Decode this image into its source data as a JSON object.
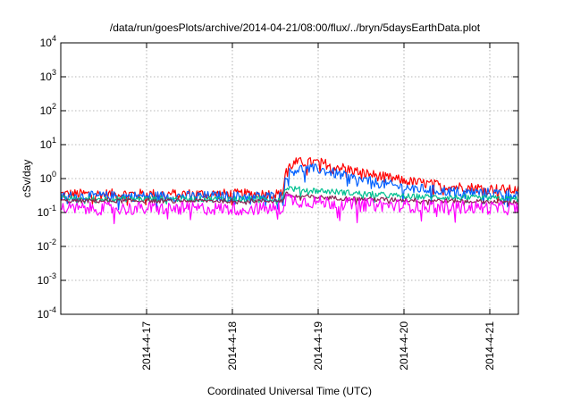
{
  "chart_data": {
    "type": "line",
    "title": "/data/run/goesPlots/archive/2014-04-21/08:00/flux/../bryn/5daysEarthData.plot",
    "xlabel": "Coordinated Universal Time (UTC)",
    "ylabel": "cSv/day",
    "yscale": "log",
    "ylim": [
      0.0001,
      10000
    ],
    "xlim": [
      "2014-04-16 00:00",
      "2014-04-21 08:00"
    ],
    "grid": true,
    "legend": "none",
    "x_ticks": [
      "2014-4-17",
      "2014-4-18",
      "2014-4-19",
      "2014-4-20",
      "2014-4-21"
    ],
    "y_ticks": [
      {
        "base": "10",
        "exp": "-4",
        "value": 0.0001
      },
      {
        "base": "10",
        "exp": "-3",
        "value": 0.001
      },
      {
        "base": "10",
        "exp": "-2",
        "value": 0.01
      },
      {
        "base": "10",
        "exp": "-1",
        "value": 0.1
      },
      {
        "base": "10",
        "exp": "0",
        "value": 1
      },
      {
        "base": "10",
        "exp": "1",
        "value": 10
      },
      {
        "base": "10",
        "exp": "2",
        "value": 100
      },
      {
        "base": "10",
        "exp": "3",
        "value": 1000
      },
      {
        "base": "10",
        "exp": "4",
        "value": 10000
      }
    ],
    "series": [
      {
        "color": "#ff0000",
        "noise": 0.35,
        "points": [
          [
            "2014-04-16 00:00",
            0.35
          ],
          [
            "2014-04-18 14:00",
            0.35
          ],
          [
            "2014-04-18 15:00",
            2.0
          ],
          [
            "2014-04-18 18:00",
            3.0
          ],
          [
            "2014-04-19 00:00",
            3.0
          ],
          [
            "2014-04-19 06:00",
            2.2
          ],
          [
            "2014-04-19 12:00",
            1.5
          ],
          [
            "2014-04-20 00:00",
            0.85
          ],
          [
            "2014-04-20 12:00",
            0.6
          ],
          [
            "2014-04-21 08:00",
            0.45
          ]
        ]
      },
      {
        "color": "#0060ff",
        "noise": 0.35,
        "points": [
          [
            "2014-04-16 00:00",
            0.3
          ],
          [
            "2014-04-18 14:00",
            0.3
          ],
          [
            "2014-04-18 15:00",
            1.3
          ],
          [
            "2014-04-18 18:00",
            1.9
          ],
          [
            "2014-04-19 00:00",
            1.9
          ],
          [
            "2014-04-19 06:00",
            1.3
          ],
          [
            "2014-04-19 12:00",
            0.9
          ],
          [
            "2014-04-20 00:00",
            0.55
          ],
          [
            "2014-04-20 12:00",
            0.42
          ],
          [
            "2014-04-21 08:00",
            0.35
          ]
        ]
      },
      {
        "color": "#00c090",
        "noise": 0.2,
        "points": [
          [
            "2014-04-16 00:00",
            0.25
          ],
          [
            "2014-04-18 14:00",
            0.25
          ],
          [
            "2014-04-18 15:00",
            0.55
          ],
          [
            "2014-04-18 18:00",
            0.48
          ],
          [
            "2014-04-19 06:00",
            0.4
          ],
          [
            "2014-04-19 12:00",
            0.36
          ],
          [
            "2014-04-20 00:00",
            0.3
          ],
          [
            "2014-04-21 08:00",
            0.25
          ]
        ]
      },
      {
        "color": "#8b2252",
        "noise": 0.15,
        "points": [
          [
            "2014-04-16 00:00",
            0.22
          ],
          [
            "2014-04-18 14:00",
            0.22
          ],
          [
            "2014-04-18 15:00",
            0.35
          ],
          [
            "2014-04-18 18:00",
            0.3
          ],
          [
            "2014-04-19 12:00",
            0.25
          ],
          [
            "2014-04-21 08:00",
            0.2
          ]
        ]
      },
      {
        "color": "#ff00ff",
        "noise": 0.45,
        "points": [
          [
            "2014-04-16 00:00",
            0.13
          ],
          [
            "2014-04-18 14:00",
            0.13
          ],
          [
            "2014-04-18 15:00",
            0.28
          ],
          [
            "2014-04-18 18:00",
            0.22
          ],
          [
            "2014-04-19 12:00",
            0.17
          ],
          [
            "2014-04-21 08:00",
            0.13
          ]
        ]
      }
    ]
  }
}
